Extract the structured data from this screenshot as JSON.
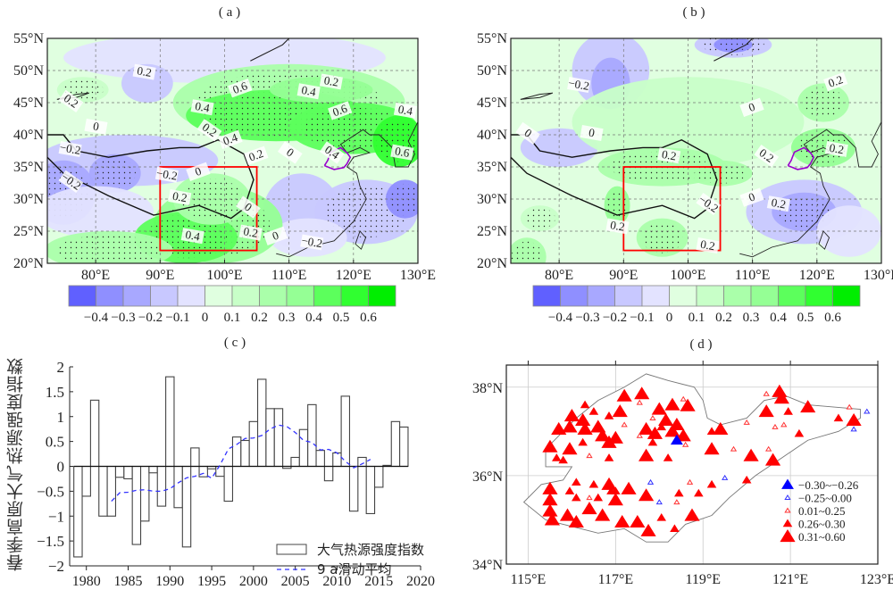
{
  "panels": {
    "a": {
      "label": "( a )"
    },
    "b": {
      "label": "( b )"
    },
    "c": {
      "label": "( c )"
    },
    "d": {
      "label": "( d )"
    }
  },
  "chart_data": [
    {
      "id": "a",
      "type": "heatmap",
      "title": "( a )",
      "xlabel": "",
      "ylabel": "",
      "x_ticks": [
        "80°E",
        "90°E",
        "100°E",
        "110°E",
        "120°E",
        "130°E"
      ],
      "y_ticks": [
        "55°N",
        "50°N",
        "45°N",
        "40°N",
        "35°N",
        "30°N",
        "25°N",
        "20°N"
      ],
      "xlim_deg": [
        72.5,
        130
      ],
      "ylim_deg": [
        20,
        55
      ],
      "grid": true,
      "colorbar": {
        "levels": [
          -0.4,
          -0.3,
          -0.2,
          -0.1,
          0,
          0.1,
          0.2,
          0.3,
          0.4,
          0.5,
          0.6
        ],
        "tick_labels": [
          "−0.4",
          "−0.3",
          "−0.2",
          "−0.1",
          "0",
          "0.1",
          "0.2",
          "0.3",
          "0.4",
          "0.5",
          "0.6"
        ],
        "colors": [
          "#6060ff",
          "#8f8fff",
          "#a8a8ff",
          "#c8c8ff",
          "#e3e3ff",
          "#e0ffe0",
          "#c8ffc8",
          "#aaffaa",
          "#95ff95",
          "#5cff5c",
          "#30ff30",
          "#00ee00"
        ]
      },
      "contour_labels": [
        "0.2",
        "0.2",
        "0",
        "0.6",
        "0.4",
        "0.2",
        "0.4",
        "0.6",
        "0.4",
        "0",
        "0.2",
        "0.4",
        "−0.2",
        "−0.2",
        "0.2",
        "0",
        "−0.2",
        "0",
        "0.2",
        "0.2",
        "0.4",
        "0.4",
        "0.6",
        "0",
        "−0.2"
      ],
      "region_box": {
        "lon": [
          90,
          105
        ],
        "lat": [
          22,
          35
        ],
        "color": "#ff0000"
      },
      "highlight_region_color": "#9900cc"
    },
    {
      "id": "b",
      "type": "heatmap",
      "title": "( b )",
      "x_ticks": [
        "80°E",
        "90°E",
        "100°E",
        "110°E",
        "120°E",
        "130°E"
      ],
      "y_ticks": [
        "55°N",
        "50°N",
        "45°N",
        "40°N",
        "35°N",
        "30°N",
        "25°N",
        "20°N"
      ],
      "xlim_deg": [
        72.5,
        130
      ],
      "ylim_deg": [
        20,
        55
      ],
      "grid": true,
      "colorbar": {
        "levels": [
          -0.4,
          -0.3,
          -0.2,
          -0.1,
          0,
          0.1,
          0.2,
          0.3,
          0.4,
          0.5,
          0.6
        ],
        "tick_labels": [
          "−0.4",
          "−0.3",
          "−0.2",
          "−0.1",
          "0",
          "0.1",
          "0.2",
          "0.3",
          "0.4",
          "0.5",
          "0.6"
        ],
        "colors": [
          "#6060ff",
          "#8f8fff",
          "#a8a8ff",
          "#c8c8ff",
          "#e3e3ff",
          "#e0ffe0",
          "#c8ffc8",
          "#aaffaa",
          "#95ff95",
          "#5cff5c",
          "#30ff30",
          "#00ee00"
        ]
      },
      "contour_labels": [
        "−0.2",
        "0",
        "0",
        "0",
        "0.2",
        "0.2",
        "0.2",
        "0",
        "0.2",
        "−0.2",
        "0.2",
        "0.2",
        "0.2"
      ],
      "region_box": {
        "lon": [
          90,
          105
        ],
        "lat": [
          22,
          35
        ],
        "color": "#ff0000"
      }
    },
    {
      "id": "c",
      "type": "bar",
      "title": "( c )",
      "xlabel": "",
      "ylabel": "春季高原大气热源强度指数",
      "ylim": [
        -2,
        2
      ],
      "xlim": [
        1978,
        2020
      ],
      "y_ticks": [
        "2",
        "1.5",
        "1",
        "0.5",
        "0",
        "−0.5",
        "−1",
        "−1.5",
        "−2"
      ],
      "y_tick_values": [
        2,
        1.5,
        1,
        0.5,
        0,
        -0.5,
        -1,
        -1.5,
        -2
      ],
      "x_ticks": [
        "1980",
        "1985",
        "1990",
        "1995",
        "2000",
        "2005",
        "2010",
        "2015",
        "2020"
      ],
      "x_tick_values": [
        1980,
        1985,
        1990,
        1995,
        2000,
        2005,
        2010,
        2015,
        2020
      ],
      "legend_position": "bottom-right",
      "series": [
        {
          "name": "大气热源强度指数",
          "kind": "bar",
          "x": [
            1979,
            1980,
            1981,
            1982,
            1983,
            1984,
            1985,
            1986,
            1987,
            1988,
            1989,
            1990,
            1991,
            1992,
            1993,
            1994,
            1995,
            1996,
            1997,
            1998,
            1999,
            2000,
            2001,
            2002,
            2003,
            2004,
            2005,
            2006,
            2007,
            2008,
            2009,
            2010,
            2011,
            2012,
            2013,
            2014,
            2015,
            2016,
            2017,
            2018
          ],
          "values": [
            -1.82,
            -0.6,
            1.33,
            -1.0,
            -1.0,
            -0.22,
            -0.25,
            -1.57,
            -1.1,
            -0.13,
            -0.8,
            1.8,
            -0.83,
            -1.62,
            0.37,
            -0.21,
            -0.05,
            -0.2,
            -0.7,
            0.59,
            0.52,
            0.9,
            1.75,
            1.16,
            1.16,
            -0.04,
            0.18,
            0.74,
            1.24,
            0.32,
            -0.29,
            0.27,
            1.41,
            -0.9,
            0.18,
            -0.95,
            -0.42,
            0.02,
            0.9,
            0.79
          ]
        },
        {
          "name": "9 a滑动平均",
          "kind": "line",
          "style": "dashed",
          "color": "#3333ff",
          "x": [
            1983,
            1984,
            1985,
            1986,
            1987,
            1988,
            1989,
            1990,
            1991,
            1992,
            1993,
            1994,
            1995,
            1996,
            1997,
            1998,
            1999,
            2000,
            2001,
            2002,
            2003,
            2004,
            2005,
            2006,
            2007,
            2008,
            2009,
            2010,
            2011,
            2012,
            2013,
            2014
          ],
          "values": [
            -0.7,
            -0.53,
            -0.52,
            -0.48,
            -0.47,
            -0.5,
            -0.5,
            -0.45,
            -0.33,
            -0.23,
            -0.2,
            -0.14,
            -0.24,
            0.03,
            0.35,
            0.44,
            0.56,
            0.57,
            0.62,
            0.75,
            0.83,
            0.8,
            0.68,
            0.52,
            0.48,
            0.33,
            0.34,
            0.27,
            0.1,
            -0.03,
            0.05,
            0.14
          ]
        }
      ]
    },
    {
      "id": "d",
      "type": "scatter",
      "title": "( d )",
      "x_ticks": [
        "115°E",
        "117°E",
        "119°E",
        "121°E",
        "123°E"
      ],
      "x_tick_values": [
        115,
        117,
        119,
        121,
        123
      ],
      "y_ticks": [
        "38°N",
        "36°N",
        "34°N"
      ],
      "y_tick_values": [
        38,
        36,
        34
      ],
      "xlim": [
        114.5,
        123
      ],
      "ylim": [
        34,
        38.5
      ],
      "grid": true,
      "legend_position": "bottom-right",
      "legend": [
        {
          "label": "−0.30~−0.26",
          "color": "#0000ff",
          "size": "medium",
          "fill": true
        },
        {
          "label": "−0.25~0.00",
          "color": "#3333ff",
          "size": "small",
          "fill": false
        },
        {
          "label": "0.01~0.25",
          "color": "#ff3333",
          "size": "small",
          "fill": false
        },
        {
          "label": "0.26~0.30",
          "color": "#ff0000",
          "size": "medium",
          "fill": true
        },
        {
          "label": "0.31~0.60",
          "color": "#ff0000",
          "size": "large",
          "fill": true
        }
      ],
      "points": [
        {
          "lon": 117.2,
          "lat": 37.8,
          "cls": 4
        },
        {
          "lon": 117.6,
          "lat": 37.85,
          "cls": 4
        },
        {
          "lon": 117.55,
          "lat": 37.65,
          "cls": 2
        },
        {
          "lon": 116.3,
          "lat": 37.6,
          "cls": 3
        },
        {
          "lon": 116.5,
          "lat": 37.45,
          "cls": 3
        },
        {
          "lon": 117.1,
          "lat": 37.45,
          "cls": 4
        },
        {
          "lon": 118.0,
          "lat": 37.5,
          "cls": 4
        },
        {
          "lon": 118.3,
          "lat": 37.6,
          "cls": 4
        },
        {
          "lon": 118.65,
          "lat": 37.58,
          "cls": 4
        },
        {
          "lon": 118.55,
          "lat": 37.73,
          "cls": 2
        },
        {
          "lon": 116.0,
          "lat": 37.35,
          "cls": 4
        },
        {
          "lon": 116.25,
          "lat": 37.25,
          "cls": 4
        },
        {
          "lon": 116.85,
          "lat": 37.35,
          "cls": 3
        },
        {
          "lon": 117.85,
          "lat": 37.3,
          "cls": 2
        },
        {
          "lon": 118.15,
          "lat": 37.25,
          "cls": 4
        },
        {
          "lon": 118.4,
          "lat": 37.15,
          "cls": 4
        },
        {
          "lon": 117.2,
          "lat": 37.15,
          "cls": 2
        },
        {
          "lon": 118.05,
          "lat": 37.1,
          "cls": 3
        },
        {
          "lon": 115.7,
          "lat": 37.05,
          "cls": 4
        },
        {
          "lon": 115.95,
          "lat": 37.1,
          "cls": 4
        },
        {
          "lon": 116.3,
          "lat": 37.05,
          "cls": 4
        },
        {
          "lon": 116.6,
          "lat": 37.1,
          "cls": 4
        },
        {
          "lon": 116.7,
          "lat": 36.9,
          "cls": 4
        },
        {
          "lon": 117.7,
          "lat": 37.05,
          "cls": 4
        },
        {
          "lon": 117.9,
          "lat": 36.95,
          "cls": 4
        },
        {
          "lon": 118.3,
          "lat": 37.0,
          "cls": 4
        },
        {
          "lon": 118.55,
          "lat": 36.9,
          "cls": 5
        },
        {
          "lon": 117.55,
          "lat": 36.9,
          "cls": 2
        },
        {
          "lon": 116.25,
          "lat": 36.75,
          "cls": 3
        },
        {
          "lon": 116.85,
          "lat": 36.75,
          "cls": 4
        },
        {
          "lon": 117.0,
          "lat": 36.85,
          "cls": 4
        },
        {
          "lon": 117.85,
          "lat": 36.75,
          "cls": 3
        },
        {
          "lon": 118.6,
          "lat": 36.7,
          "cls": 2
        },
        {
          "lon": 115.5,
          "lat": 36.65,
          "cls": 4
        },
        {
          "lon": 115.95,
          "lat": 36.6,
          "cls": 4
        },
        {
          "lon": 115.65,
          "lat": 36.4,
          "cls": 3
        },
        {
          "lon": 115.8,
          "lat": 36.35,
          "cls": 3
        },
        {
          "lon": 116.4,
          "lat": 36.45,
          "cls": 2
        },
        {
          "lon": 116.85,
          "lat": 36.4,
          "cls": 3
        },
        {
          "lon": 117.7,
          "lat": 36.45,
          "cls": 4
        },
        {
          "lon": 118.2,
          "lat": 36.4,
          "cls": 3
        },
        {
          "lon": 119.2,
          "lat": 36.6,
          "cls": 4
        },
        {
          "lon": 119.2,
          "lat": 37.0,
          "cls": 3
        },
        {
          "lon": 119.4,
          "lat": 37.05,
          "cls": 4
        },
        {
          "lon": 119.7,
          "lat": 36.6,
          "cls": 2
        },
        {
          "lon": 120.1,
          "lat": 36.45,
          "cls": 4
        },
        {
          "lon": 120.6,
          "lat": 36.35,
          "cls": 4
        },
        {
          "lon": 120.5,
          "lat": 36.6,
          "cls": 2
        },
        {
          "lon": 120.0,
          "lat": 37.2,
          "cls": 2
        },
        {
          "lon": 120.45,
          "lat": 37.45,
          "cls": 4
        },
        {
          "lon": 120.65,
          "lat": 37.1,
          "cls": 2
        },
        {
          "lon": 120.85,
          "lat": 37.15,
          "cls": 2
        },
        {
          "lon": 120.8,
          "lat": 37.75,
          "cls": 4
        },
        {
          "lon": 120.75,
          "lat": 37.9,
          "cls": 4
        },
        {
          "lon": 120.45,
          "lat": 37.85,
          "cls": 2
        },
        {
          "lon": 120.95,
          "lat": 37.45,
          "cls": 3
        },
        {
          "lon": 121.4,
          "lat": 37.55,
          "cls": 4
        },
        {
          "lon": 121.2,
          "lat": 36.95,
          "cls": 3
        },
        {
          "lon": 122.1,
          "lat": 37.3,
          "cls": 3
        },
        {
          "lon": 122.35,
          "lat": 37.55,
          "cls": 2
        },
        {
          "lon": 122.45,
          "lat": 37.25,
          "cls": 4
        },
        {
          "lon": 122.75,
          "lat": 37.45,
          "cls": 1
        },
        {
          "lon": 122.45,
          "lat": 37.05,
          "cls": 1
        },
        {
          "lon": 118.4,
          "lat": 36.8,
          "cls": 0
        },
        {
          "lon": 119.5,
          "lat": 35.95,
          "cls": 1
        },
        {
          "lon": 117.8,
          "lat": 35.85,
          "cls": 1
        },
        {
          "lon": 118.0,
          "lat": 35.4,
          "cls": 1
        },
        {
          "lon": 118.7,
          "lat": 35.85,
          "cls": 2
        },
        {
          "lon": 118.4,
          "lat": 35.4,
          "cls": 2
        },
        {
          "lon": 119.2,
          "lat": 35.8,
          "cls": 3
        },
        {
          "lon": 118.9,
          "lat": 35.6,
          "cls": 3
        },
        {
          "lon": 118.45,
          "lat": 35.6,
          "cls": 3
        },
        {
          "lon": 120.0,
          "lat": 35.9,
          "cls": 3
        },
        {
          "lon": 115.5,
          "lat": 35.7,
          "cls": 4
        },
        {
          "lon": 115.5,
          "lat": 35.45,
          "cls": 4
        },
        {
          "lon": 115.5,
          "lat": 35.2,
          "cls": 4
        },
        {
          "lon": 115.55,
          "lat": 35.0,
          "cls": 4
        },
        {
          "lon": 115.9,
          "lat": 35.1,
          "cls": 4
        },
        {
          "lon": 116.1,
          "lat": 34.95,
          "cls": 4
        },
        {
          "lon": 116.4,
          "lat": 35.25,
          "cls": 4
        },
        {
          "lon": 116.7,
          "lat": 35.1,
          "cls": 4
        },
        {
          "lon": 115.95,
          "lat": 35.65,
          "cls": 3
        },
        {
          "lon": 116.1,
          "lat": 35.5,
          "cls": 3
        },
        {
          "lon": 116.4,
          "lat": 35.5,
          "cls": 2
        },
        {
          "lon": 116.5,
          "lat": 35.8,
          "cls": 3
        },
        {
          "lon": 116.6,
          "lat": 35.5,
          "cls": 3
        },
        {
          "lon": 116.1,
          "lat": 35.85,
          "cls": 3
        },
        {
          "lon": 116.85,
          "lat": 35.8,
          "cls": 4
        },
        {
          "lon": 116.9,
          "lat": 35.65,
          "cls": 3
        },
        {
          "lon": 117.0,
          "lat": 35.65,
          "cls": 3
        },
        {
          "lon": 117.0,
          "lat": 35.45,
          "cls": 4
        },
        {
          "lon": 117.3,
          "lat": 35.7,
          "cls": 4
        },
        {
          "lon": 117.7,
          "lat": 35.55,
          "cls": 4
        },
        {
          "lon": 117.15,
          "lat": 34.95,
          "cls": 4
        },
        {
          "lon": 117.5,
          "lat": 34.95,
          "cls": 4
        },
        {
          "lon": 117.75,
          "lat": 34.75,
          "cls": 4
        },
        {
          "lon": 118.05,
          "lat": 35.05,
          "cls": 3
        },
        {
          "lon": 118.35,
          "lat": 34.8,
          "cls": 3
        },
        {
          "lon": 118.75,
          "lat": 35.1,
          "cls": 4
        }
      ]
    }
  ]
}
